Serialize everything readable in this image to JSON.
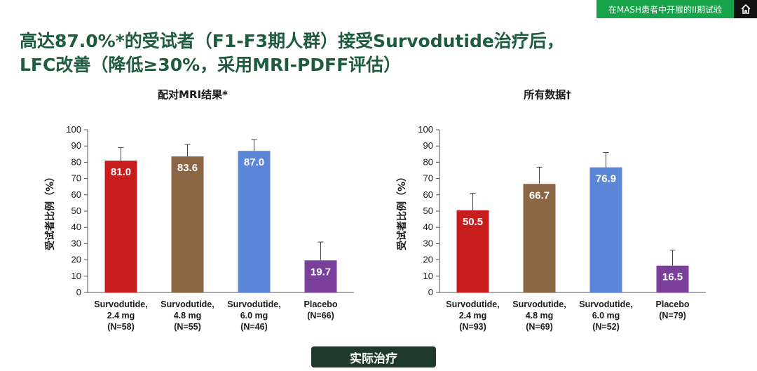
{
  "header": {
    "tag": "在MASH患者中开展的II期试验",
    "home_icon": "home-icon"
  },
  "title": {
    "line1": "高达87.0%*的受试者（F1-F3期人群）接受Survodutide治疗后，",
    "line2": "LFC改善（降低≥30%，采用MRI-PDFF评估）"
  },
  "footer": {
    "label": "实际治疗"
  },
  "colors": {
    "title": "#1f5c3f",
    "tag_bg": "#16a34a",
    "bar_red": "#c81d1d",
    "bar_brown": "#8b6644",
    "bar_blue": "#5b85d6",
    "bar_purple": "#7a3f9a"
  },
  "chart_data": [
    {
      "type": "bar",
      "title": "配对MRI结果*",
      "ylabel": "受试者比例（%）",
      "ylim": [
        0,
        100
      ],
      "yticks": [
        0,
        10,
        20,
        30,
        40,
        50,
        60,
        70,
        80,
        90,
        100
      ],
      "categories": [
        [
          "Survodutide,",
          "2.4 mg",
          "(N=58)"
        ],
        [
          "Survodutide,",
          "4.8 mg",
          "(N=55)"
        ],
        [
          "Survodutide,",
          "6.0 mg",
          "(N=46)"
        ],
        [
          "Placebo",
          "(N=66)"
        ]
      ],
      "values": [
        81.0,
        83.6,
        87.0,
        19.7
      ],
      "value_labels": [
        "81.0",
        "83.6",
        "87.0",
        "19.7"
      ],
      "error_upper": [
        89,
        91,
        94,
        31
      ],
      "bar_colors": [
        "#c81d1d",
        "#8b6644",
        "#5b85d6",
        "#7a3f9a"
      ],
      "grid": false
    },
    {
      "type": "bar",
      "title": "所有数据†",
      "ylabel": "受试者比例（%）",
      "ylim": [
        0,
        100
      ],
      "yticks": [
        0,
        10,
        20,
        30,
        40,
        50,
        60,
        70,
        80,
        90,
        100
      ],
      "categories": [
        [
          "Survodutide,",
          "2.4 mg",
          "(N=93)"
        ],
        [
          "Survodutide,",
          "4.8 mg",
          "(N=69)"
        ],
        [
          "Survodutide,",
          "6.0 mg",
          "(N=52)"
        ],
        [
          "Placebo",
          "(N=79)"
        ]
      ],
      "values": [
        50.5,
        66.7,
        76.9,
        16.5
      ],
      "value_labels": [
        "50.5",
        "66.7",
        "76.9",
        "16.5"
      ],
      "error_upper": [
        61,
        77,
        86,
        26
      ],
      "bar_colors": [
        "#c81d1d",
        "#8b6644",
        "#5b85d6",
        "#7a3f9a"
      ],
      "grid": false
    }
  ]
}
